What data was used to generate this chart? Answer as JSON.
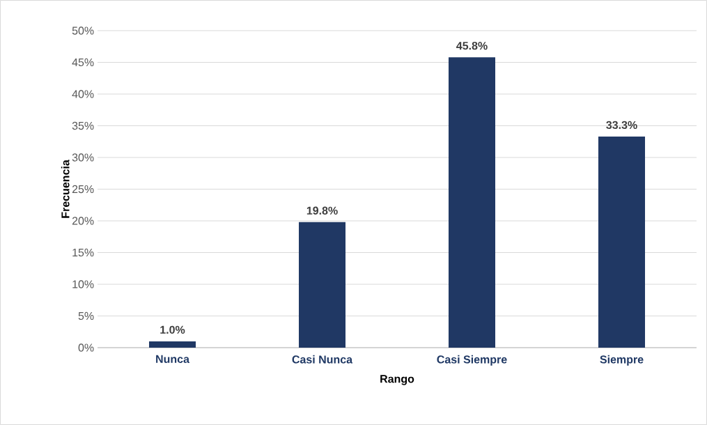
{
  "chart_data": {
    "type": "bar",
    "xlabel": "Rango",
    "ylabel": "Frecuencia",
    "categories": [
      "Nunca",
      "Casi Nunca",
      "Casi Siempre",
      "Siempre"
    ],
    "values": [
      1.0,
      19.8,
      45.8,
      33.3
    ],
    "color": "#203864",
    "value_labels": [
      "1.0%",
      "19.8%",
      "45.8%",
      "33.3%"
    ],
    "ylim": [
      0,
      50
    ],
    "yticks": [
      {
        "value": 0,
        "label": "0%"
      },
      {
        "value": 5,
        "label": "5%"
      },
      {
        "value": 10,
        "label": "10%"
      },
      {
        "value": 15,
        "label": "15%"
      },
      {
        "value": 20,
        "label": "20%"
      },
      {
        "value": 25,
        "label": "25%"
      },
      {
        "value": 30,
        "label": "30%"
      },
      {
        "value": 35,
        "label": "35%"
      },
      {
        "value": 40,
        "label": "40%"
      },
      {
        "value": 45,
        "label": "45%"
      },
      {
        "value": 50,
        "label": "50%"
      }
    ],
    "grid": "y"
  }
}
